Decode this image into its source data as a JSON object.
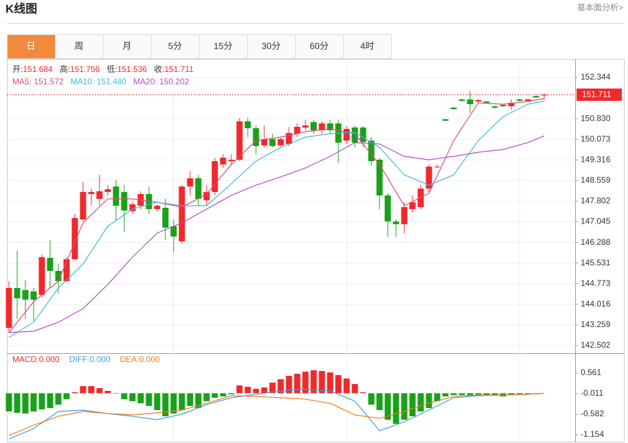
{
  "header": {
    "title": "K线图",
    "link": "基本面分析>"
  },
  "tabs": [
    "日",
    "周",
    "月",
    "5分",
    "15分",
    "30分",
    "60分",
    "4时"
  ],
  "active_tab": 0,
  "chart_data": [
    {
      "type": "candlestick",
      "ohlc_labels": [
        "开:",
        "高:",
        "低:",
        "收:"
      ],
      "up_color": "#f0292b",
      "down_color": "#1aa01a",
      "grid": true,
      "ylim": [
        142.225,
        153.023
      ],
      "yticks": [
        152.344,
        {
          "value": 150.83,
          "label": "150.830"
        },
        150.073,
        149.316,
        148.559,
        147.802,
        147.045,
        146.288,
        145.531,
        144.773,
        144.016,
        143.259,
        142.502
      ],
      "open": [
        143.157,
        144.617,
        144.542,
        144.491,
        144.365,
        145.724,
        145.246,
        144.869,
        145.674,
        147.134,
        148.065,
        147.889,
        148.141,
        148.342,
        148.141,
        147.436,
        147.637,
        148.065,
        147.512,
        147.562,
        146.882,
        146.328,
        148.342,
        148.644,
        147.839,
        148.141,
        149.148,
        149.273,
        149.324,
        150.733,
        150.482,
        149.852,
        150.079,
        149.852,
        149.903,
        150.28,
        150.507,
        150.708,
        150.406,
        150.658,
        150.658,
        150.028,
        150.507,
        150.507,
        150.028,
        149.324,
        148.015,
        147.059,
        146.958,
        147.512,
        147.587,
        148.266,
        149.047,
        150.809,
        151.237,
        151.538,
        151.538,
        151.463,
        151.463,
        151.287,
        151.337,
        151.287,
        151.538,
        151.488,
        151.664,
        151.684
      ],
      "high": [
        144.869,
        146.001,
        144.919,
        144.617,
        145.851,
        146.379,
        145.498,
        145.75,
        147.335,
        148.518,
        148.266,
        148.77,
        148.392,
        148.594,
        148.392,
        147.763,
        148.166,
        148.342,
        147.688,
        147.889,
        147.134,
        148.392,
        148.896,
        148.77,
        148.392,
        149.399,
        149.525,
        149.525,
        150.859,
        150.859,
        150.582,
        150.582,
        150.28,
        150.154,
        150.532,
        150.658,
        150.784,
        150.784,
        150.733,
        150.784,
        150.784,
        150.557,
        150.582,
        150.557,
        150.154,
        149.399,
        148.09,
        147.134,
        147.763,
        148.015,
        148.392,
        149.148,
        149.148,
        150.834,
        151.261,
        151.563,
        151.84,
        151.563,
        151.488,
        151.312,
        151.362,
        151.538,
        151.563,
        151.563,
        151.689,
        151.756
      ],
      "low": [
        142.98,
        143.484,
        143.484,
        143.409,
        144.29,
        144.617,
        144.416,
        144.818,
        145.624,
        147.084,
        147.637,
        147.637,
        148.015,
        147.084,
        146.681,
        147.335,
        147.512,
        147.335,
        147.436,
        146.379,
        145.926,
        146.253,
        148.015,
        147.637,
        147.637,
        148.015,
        149.021,
        149.148,
        149.273,
        150.154,
        149.525,
        149.777,
        149.777,
        149.777,
        149.827,
        150.154,
        150.406,
        150.28,
        150.28,
        150.28,
        149.198,
        149.903,
        149.777,
        149.777,
        149.097,
        147.512,
        146.505,
        146.505,
        146.63,
        147.385,
        147.512,
        148.141,
        149.021,
        150.733,
        151.161,
        151.463,
        151.035,
        151.413,
        151.387,
        151.186,
        151.261,
        151.161,
        151.463,
        151.463,
        151.589,
        151.536
      ],
      "close": [
        144.617,
        144.24,
        144.189,
        144.189,
        145.75,
        145.246,
        144.869,
        145.674,
        147.184,
        148.141,
        148.141,
        148.166,
        148.241,
        147.637,
        147.461,
        147.688,
        148.065,
        147.512,
        147.637,
        146.832,
        146.505,
        148.342,
        148.644,
        147.889,
        148.141,
        149.273,
        149.399,
        149.324,
        150.733,
        150.482,
        149.827,
        150.079,
        149.827,
        150.079,
        150.305,
        150.532,
        150.582,
        150.406,
        150.658,
        150.406,
        149.953,
        150.456,
        149.953,
        149.978,
        149.273,
        148.015,
        147.059,
        146.958,
        147.587,
        147.763,
        148.266,
        149.072,
        149.072,
        150.758,
        151.186,
        151.488,
        151.362,
        151.513,
        151.413,
        151.237,
        151.287,
        151.413,
        151.488,
        151.538,
        151.614,
        151.711
      ],
      "overlay_separator": ": ",
      "overlays": [
        {
          "name": "MA5",
          "color": "#e2467f",
          "readout_label": "151.572",
          "x": [
            0,
            3,
            6,
            9,
            12,
            15,
            18,
            21,
            24,
            27,
            30,
            33,
            36,
            39,
            42,
            45,
            48,
            51,
            54,
            57,
            60,
            63,
            65
          ],
          "values": [
            142.98,
            144.114,
            144.869,
            147.008,
            147.889,
            147.889,
            147.763,
            147.587,
            148.065,
            149.148,
            150.028,
            150.154,
            150.355,
            150.456,
            150.28,
            149.148,
            147.637,
            148.09,
            150.028,
            151.413,
            151.362,
            151.463,
            151.572
          ]
        },
        {
          "name": "MA10",
          "color": "#3fb8d8",
          "readout_label": "151.480",
          "x": [
            0,
            3,
            6,
            9,
            12,
            15,
            18,
            21,
            24,
            27,
            30,
            33,
            36,
            39,
            42,
            45,
            48,
            51,
            54,
            57,
            60,
            63,
            65
          ],
          "values": [
            142.804,
            143.358,
            144.617,
            145.498,
            146.882,
            147.512,
            147.763,
            147.637,
            147.637,
            148.443,
            149.273,
            149.777,
            150.154,
            150.28,
            150.33,
            149.777,
            148.77,
            148.392,
            148.77,
            150.028,
            150.909,
            151.362,
            151.48
          ]
        },
        {
          "name": "MA20",
          "color": "#b34cc2",
          "readout_label": "150.202",
          "x": [
            0,
            3,
            6,
            9,
            12,
            15,
            18,
            21,
            24,
            27,
            30,
            33,
            36,
            39,
            42,
            45,
            48,
            51,
            54,
            57,
            60,
            63,
            65
          ],
          "values": [
            142.98,
            143.031,
            143.358,
            143.862,
            144.743,
            145.749,
            146.63,
            147.008,
            147.512,
            148.015,
            148.392,
            148.694,
            149.021,
            149.449,
            149.953,
            149.903,
            149.449,
            149.324,
            149.449,
            149.6,
            149.701,
            149.953,
            150.202
          ]
        }
      ]
    },
    {
      "type": "macd",
      "separator": ":",
      "ylim": [
        -1.363,
        1.113
      ],
      "yticks": [
        0.561,
        -0.011,
        -0.582,
        -1.154
      ],
      "up_color": "#f0292b",
      "down_color": "#1aa01a",
      "series": [
        {
          "name": "MACD",
          "style": "histogram",
          "color": "#f0292b",
          "readout_label": "0.000",
          "values": [
            -0.506,
            -0.544,
            -0.563,
            -0.506,
            -0.449,
            -0.411,
            -0.316,
            -0.164,
            0.027,
            0.198,
            0.198,
            0.141,
            0.065,
            -0.011,
            -0.164,
            -0.221,
            -0.278,
            -0.354,
            -0.468,
            -0.64,
            -0.563,
            -0.468,
            -0.354,
            -0.411,
            -0.221,
            -0.125,
            -0.087,
            -0.03,
            0.217,
            0.179,
            0.122,
            0.16,
            0.294,
            0.389,
            0.484,
            0.541,
            0.598,
            0.637,
            0.618,
            0.579,
            0.503,
            0.408,
            0.255,
            0.027,
            -0.316,
            -0.468,
            -0.735,
            -0.849,
            -0.735,
            -0.64,
            -0.506,
            -0.411,
            -0.221,
            -0.087,
            -0.049,
            -0.049,
            -0.068,
            -0.068,
            -0.068,
            -0.068,
            -0.087,
            -0.049,
            -0.049,
            -0.03,
            -0.03,
            0
          ]
        },
        {
          "name": "DIFF",
          "style": "line",
          "color": "#3a9fe0",
          "readout_label": "0.000",
          "x": [
            0,
            3,
            6,
            9,
            12,
            15,
            18,
            21,
            24,
            27,
            30,
            33,
            36,
            39,
            42,
            45,
            48,
            51,
            54,
            57,
            60,
            63,
            65
          ],
          "values": [
            -1.268,
            -0.982,
            -0.506,
            -0.468,
            -0.563,
            -0.64,
            -0.735,
            -0.582,
            -0.316,
            -0.125,
            -0.03,
            0.065,
            0.103,
            0.065,
            -0.221,
            -1.04,
            -0.792,
            -0.468,
            -0.125,
            -0.068,
            -0.049,
            -0.03,
            0
          ]
        },
        {
          "name": "DEA",
          "style": "line",
          "color": "#f07a1c",
          "readout_label": "0.000",
          "x": [
            0,
            3,
            6,
            9,
            12,
            15,
            18,
            21,
            24,
            27,
            30,
            33,
            36,
            39,
            42,
            45,
            48,
            51,
            54,
            57,
            60,
            63,
            65
          ],
          "values": [
            -1.173,
            -0.887,
            -0.64,
            -0.506,
            -0.563,
            -0.601,
            -0.544,
            -0.468,
            -0.278,
            -0.068,
            -0.087,
            -0.125,
            -0.164,
            -0.278,
            -0.601,
            -0.697,
            -0.506,
            -0.278,
            -0.087,
            -0.049,
            -0.049,
            -0.03,
            0
          ]
        }
      ]
    }
  ]
}
